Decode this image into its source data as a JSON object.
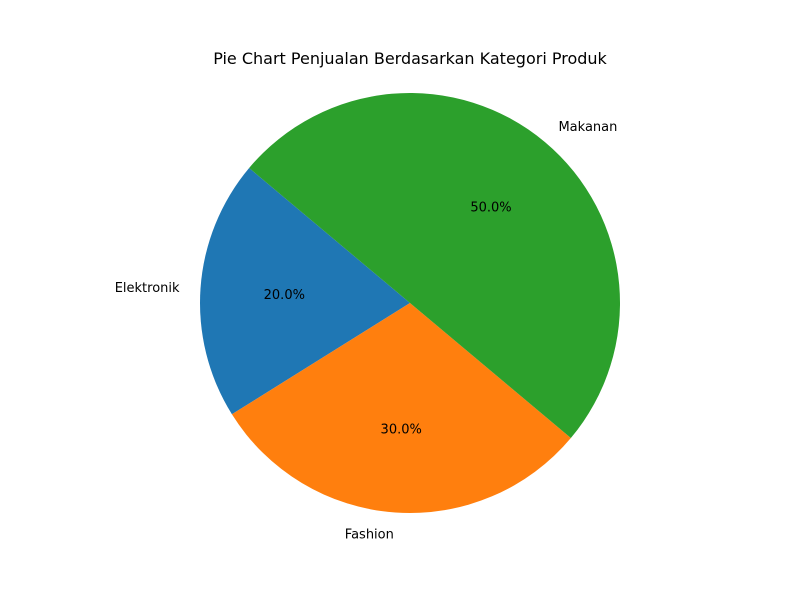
{
  "chart_data": {
    "type": "pie",
    "title": "Pie Chart Penjualan Berdasarkan Kategori Produk",
    "categories": [
      "Elektronik",
      "Fashion",
      "Makanan"
    ],
    "values": [
      20,
      30,
      50
    ],
    "percent_labels": [
      "20.0%",
      "30.0%",
      "50.0%"
    ],
    "colors": [
      "#1f77b4",
      "#ff7f0e",
      "#2ca02c"
    ],
    "start_angle_deg": 140,
    "direction": "counterclockwise",
    "legend": false
  }
}
